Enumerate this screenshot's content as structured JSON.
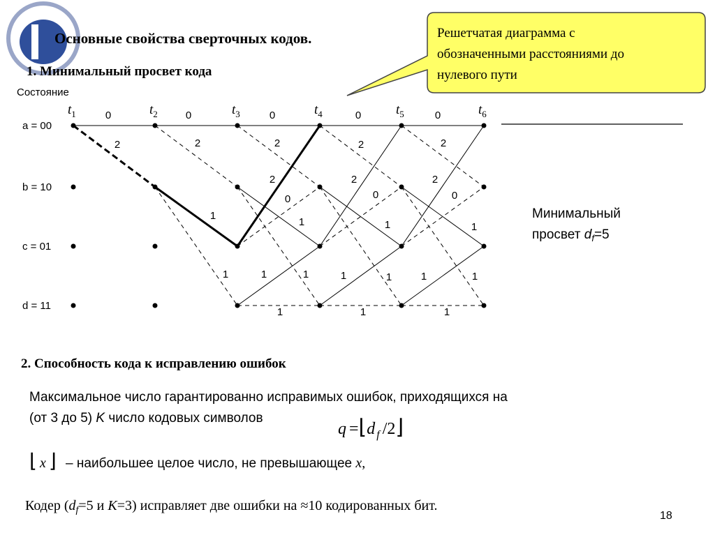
{
  "header": {
    "title": "Основные свойства сверточных кодов."
  },
  "section1": {
    "heading": "1. Минимальный просвет кода",
    "state_caption": "Состояние"
  },
  "callout": {
    "lines": [
      "Решетчатая диаграмма с",
      "обозначенными расстояниями до",
      "нулевого пути"
    ]
  },
  "trellis": {
    "states": [
      "a = 00",
      "b = 10",
      "c = 01",
      "d = 11"
    ],
    "times": [
      {
        "symbol": "t",
        "index": "1"
      },
      {
        "symbol": "t",
        "index": "2"
      },
      {
        "symbol": "t",
        "index": "3"
      },
      {
        "symbol": "t",
        "index": "4"
      },
      {
        "symbol": "t",
        "index": "5"
      },
      {
        "symbol": "t",
        "index": "6"
      }
    ],
    "edge_labels": [
      "0",
      "2",
      "0",
      "2",
      "1",
      "1",
      "0",
      "2",
      "1",
      "1",
      "2",
      "0",
      "1",
      "1",
      "0",
      "2",
      "2",
      "0",
      "1",
      "1",
      "1",
      "1",
      "0",
      "2",
      "2",
      "0",
      "1",
      "1",
      "1",
      "1"
    ]
  },
  "free_distance_note": {
    "line1": "Минимальный",
    "line2": "просвет ",
    "symbol": "d",
    "subscript": "f",
    "value": "=5"
  },
  "section2": {
    "heading": "2. Способность кода к исправлению ошибок",
    "line1": "Максимальное число гарантированно исправимых ошибок, приходящихся на",
    "line2_pre": "(от 3 до 5) ",
    "line2_k": "K",
    "line2_post": " число кодовых символов",
    "formula": {
      "q": "q",
      "eq": "=",
      "lfloor": "⌊",
      "d": "d",
      "f": "f",
      "div": "/2",
      "rfloor": "⌋"
    },
    "floor_def": {
      "lfloor": "⌊",
      "x": "x",
      "rfloor": "⌋",
      "text": " – наибольшее целое число, не превышающее ",
      "x2": "x",
      "comma": ","
    },
    "encoder": {
      "pre": "Кодер (",
      "d": "d",
      "f": "f",
      "mid": "=5 и ",
      "k": "K",
      "post": "=3) исправляет две ошибки на ",
      "approx": "≈",
      "tail": "10 кодированных бит."
    }
  },
  "page_number": "18"
}
